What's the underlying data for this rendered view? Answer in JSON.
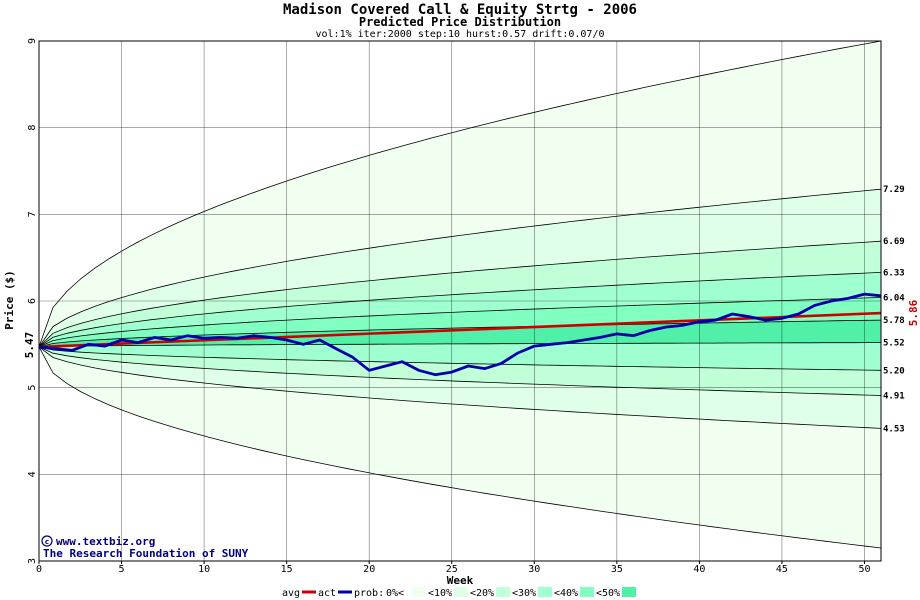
{
  "chart_data": {
    "type": "area",
    "title": "Madison Covered Call & Equity Strtg - 2006",
    "subtitle": "Predicted Price Distribution",
    "params": "vol:1% iter:2000 step:10 hurst:0.57 drift:0.07/0",
    "xlabel": "Week",
    "ylabel": "Price ($)",
    "xlim": [
      0,
      51
    ],
    "ylim": [
      3,
      9
    ],
    "x_ticks": [
      "0",
      "5",
      "10",
      "15",
      "20",
      "25",
      "30",
      "35",
      "40",
      "45",
      "50"
    ],
    "y_ticks": [
      "3",
      "4",
      "5",
      "6",
      "7",
      "8",
      "9"
    ],
    "grid": true,
    "start_price_label": "5.47",
    "start_price": 5.47,
    "end_avg_label": "5.86",
    "end_avg": 5.86,
    "bands": [
      {
        "name": "<0%",
        "color": "#f0fff0",
        "lower": 3.15,
        "upper": 9.0
      },
      {
        "name": "<10%",
        "color": "#e0ffe8",
        "lower": 4.53,
        "upper": 7.29
      },
      {
        "name": "<20%",
        "color": "#c0ffd8",
        "lower": 4.91,
        "upper": 6.69
      },
      {
        "name": "<30%",
        "color": "#a0ffd0",
        "lower": 5.2,
        "upper": 6.33
      },
      {
        "name": "<40%",
        "color": "#80ffc0",
        "lower": 5.52,
        "upper": 6.04
      },
      {
        "name": "<50%",
        "color": "#50f0a8",
        "lower": 5.52,
        "upper": 5.78
      }
    ],
    "quantile_labels": [
      "7.29",
      "6.69",
      "6.33",
      "6.04",
      "5.78",
      "5.52",
      "5.20",
      "4.91",
      "4.53"
    ],
    "series": [
      {
        "name": "avg",
        "color": "#cc0000",
        "x": [
          0,
          51
        ],
        "values": [
          5.47,
          5.86
        ]
      },
      {
        "name": "act",
        "color": "#0000aa",
        "x": [
          0,
          1,
          2,
          3,
          4,
          5,
          6,
          7,
          8,
          9,
          10,
          11,
          12,
          13,
          14,
          15,
          16,
          17,
          18,
          19,
          20,
          21,
          22,
          23,
          24,
          25,
          26,
          27,
          28,
          29,
          30,
          31,
          32,
          33,
          34,
          35,
          36,
          37,
          38,
          39,
          40,
          41,
          42,
          43,
          44,
          45,
          46,
          47,
          48,
          49,
          50,
          51
        ],
        "values": [
          5.47,
          5.45,
          5.43,
          5.5,
          5.48,
          5.55,
          5.52,
          5.58,
          5.55,
          5.6,
          5.57,
          5.58,
          5.57,
          5.6,
          5.58,
          5.55,
          5.5,
          5.55,
          5.45,
          5.35,
          5.2,
          5.25,
          5.3,
          5.2,
          5.15,
          5.18,
          5.25,
          5.22,
          5.28,
          5.4,
          5.48,
          5.5,
          5.52,
          5.55,
          5.58,
          5.62,
          5.6,
          5.66,
          5.7,
          5.72,
          5.76,
          5.78,
          5.85,
          5.82,
          5.78,
          5.8,
          5.85,
          5.95,
          6.0,
          6.03,
          6.08,
          6.06
        ]
      }
    ],
    "legend": {
      "placement": "bottom",
      "avg_label": "avg",
      "act_label": "act",
      "prob_label": "prob:",
      "items": [
        "0%<",
        "<10%",
        "<20%",
        "<30%",
        "<40%",
        "<50%"
      ]
    }
  },
  "credits": {
    "line1": "www.textbiz.org",
    "line2": "The Research Foundation of SUNY"
  }
}
